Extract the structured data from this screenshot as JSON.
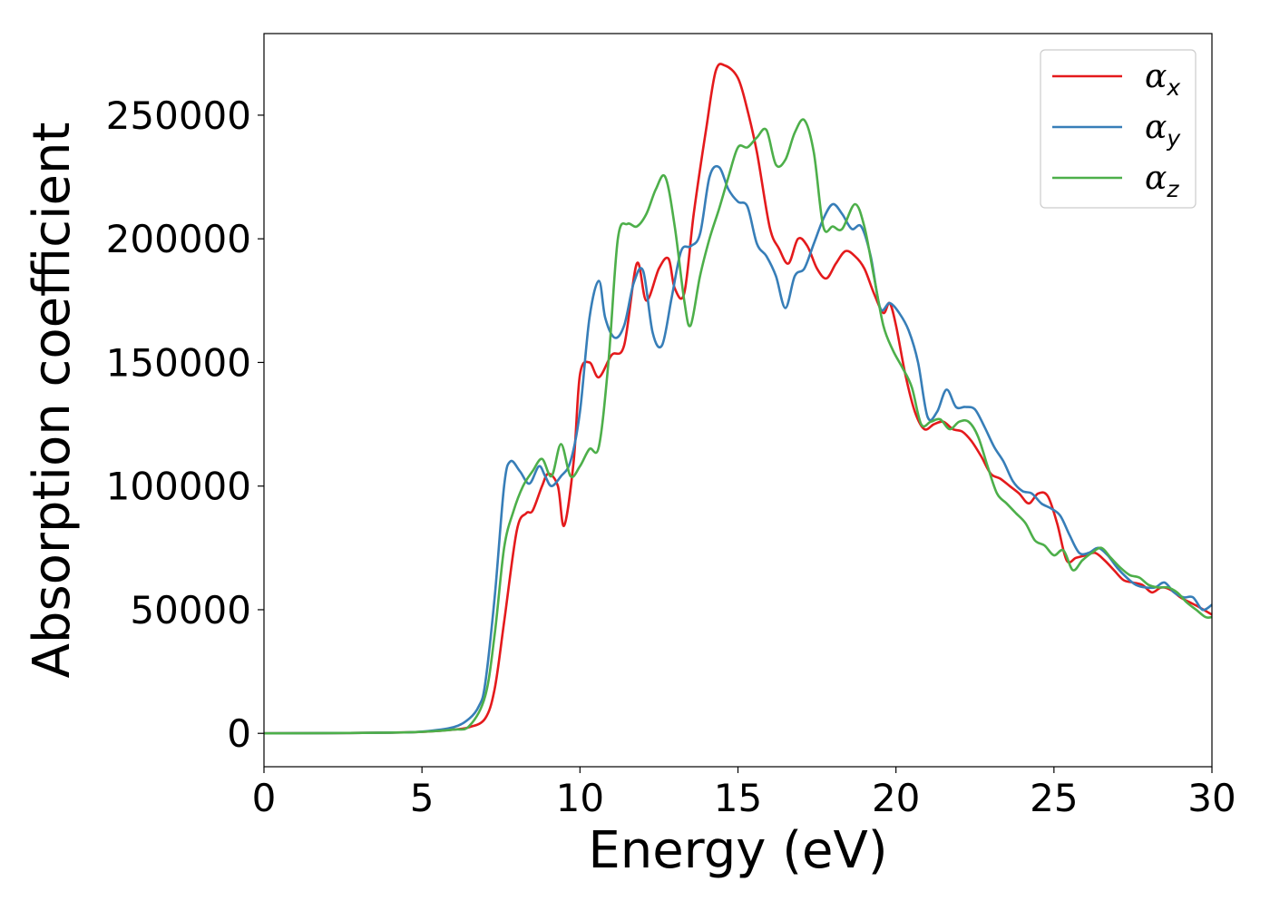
{
  "chart_data": {
    "type": "line",
    "xlabel": "Energy (eV)",
    "ylabel": "Absorption coefficient",
    "xlim": [
      0,
      30
    ],
    "ylim": [
      -13500,
      283000
    ],
    "xticks": [
      0,
      5,
      10,
      15,
      20,
      25,
      30
    ],
    "yticks": [
      0,
      50000,
      100000,
      150000,
      200000,
      250000
    ],
    "grid": false,
    "legend_position": "top-right",
    "series": [
      {
        "name": "α",
        "subscript": "x",
        "color": "#e41a1c",
        "x": [
          0,
          2,
          4,
          5,
          6,
          6.5,
          7,
          7.3,
          7.6,
          8.0,
          8.3,
          8.5,
          8.8,
          9.0,
          9.3,
          9.5,
          9.8,
          10.0,
          10.3,
          10.6,
          11.0,
          11.4,
          11.8,
          12.1,
          12.5,
          12.8,
          13.0,
          13.3,
          13.6,
          14.0,
          14.3,
          14.6,
          15.0,
          15.3,
          15.6,
          16.0,
          16.3,
          16.6,
          16.9,
          17.2,
          17.5,
          17.8,
          18.1,
          18.4,
          18.7,
          19.0,
          19.3,
          19.6,
          19.8,
          20.0,
          20.3,
          20.6,
          20.9,
          21.2,
          21.5,
          21.8,
          22.1,
          22.4,
          22.7,
          23.0,
          23.3,
          23.6,
          23.9,
          24.2,
          24.5,
          24.8,
          25.1,
          25.4,
          25.7,
          26.0,
          26.3,
          26.6,
          26.9,
          27.2,
          27.5,
          27.8,
          28.1,
          28.4,
          28.7,
          29.0,
          29.3,
          29.6,
          30.0
        ],
        "y": [
          0,
          100,
          300,
          600,
          1500,
          2500,
          6000,
          18000,
          45000,
          82000,
          89000,
          90000,
          100000,
          105000,
          100000,
          84000,
          110000,
          145000,
          150000,
          144000,
          153000,
          157000,
          190000,
          175000,
          188000,
          192000,
          180000,
          178000,
          210000,
          245000,
          268000,
          270000,
          265000,
          252000,
          235000,
          205000,
          196000,
          190000,
          200000,
          197000,
          188000,
          184000,
          190000,
          195000,
          193000,
          188000,
          178000,
          170000,
          174000,
          165000,
          145000,
          130000,
          123000,
          125000,
          126000,
          123000,
          122000,
          118000,
          112000,
          105000,
          103000,
          100000,
          97000,
          93000,
          97000,
          96000,
          85000,
          70000,
          71000,
          72000,
          73000,
          70000,
          66000,
          62000,
          61000,
          60000,
          57000,
          59000,
          58000,
          55000,
          53000,
          51000,
          48000
        ]
      },
      {
        "name": "α",
        "subscript": "y",
        "color": "#377eb8",
        "x": [
          0,
          2,
          4,
          5,
          6,
          6.5,
          6.8,
          7.0,
          7.3,
          7.6,
          7.8,
          8.1,
          8.4,
          8.7,
          8.9,
          9.1,
          9.4,
          9.7,
          10.0,
          10.3,
          10.6,
          10.8,
          11.1,
          11.4,
          11.7,
          12.0,
          12.3,
          12.6,
          12.9,
          13.2,
          13.5,
          13.8,
          14.1,
          14.4,
          14.7,
          15.0,
          15.3,
          15.6,
          15.9,
          16.2,
          16.5,
          16.8,
          17.1,
          17.4,
          17.7,
          18.0,
          18.3,
          18.6,
          18.9,
          19.2,
          19.5,
          19.8,
          20.1,
          20.4,
          20.7,
          21.0,
          21.3,
          21.6,
          21.9,
          22.2,
          22.5,
          22.8,
          23.1,
          23.4,
          23.7,
          24.0,
          24.3,
          24.6,
          24.9,
          25.2,
          25.5,
          25.8,
          26.1,
          26.4,
          26.7,
          27.0,
          27.3,
          27.6,
          27.9,
          28.2,
          28.5,
          28.8,
          29.1,
          29.4,
          29.7,
          30.0
        ],
        "y": [
          0,
          100,
          300,
          700,
          2500,
          6000,
          11000,
          20000,
          55000,
          100000,
          110000,
          106000,
          101000,
          108000,
          104000,
          100000,
          104000,
          110000,
          130000,
          168000,
          183000,
          168000,
          160000,
          165000,
          182000,
          187000,
          162000,
          157000,
          176000,
          195000,
          197000,
          202000,
          225000,
          229000,
          220000,
          215000,
          213000,
          198000,
          193000,
          185000,
          172000,
          185000,
          188000,
          198000,
          208000,
          214000,
          210000,
          204000,
          205000,
          193000,
          172000,
          174000,
          170000,
          163000,
          150000,
          128000,
          130000,
          139000,
          132000,
          132000,
          131000,
          124000,
          116000,
          110000,
          102000,
          98000,
          97000,
          93000,
          91000,
          88000,
          80000,
          73000,
          73000,
          75000,
          72000,
          67000,
          63000,
          60000,
          59000,
          59000,
          61000,
          57000,
          55000,
          55000,
          50000,
          52000
        ]
      },
      {
        "name": "α",
        "subscript": "z",
        "color": "#4daf4a",
        "x": [
          0,
          2,
          4,
          5,
          6,
          6.5,
          7.0,
          7.3,
          7.6,
          7.9,
          8.2,
          8.5,
          8.8,
          9.1,
          9.4,
          9.7,
          10.0,
          10.3,
          10.6,
          10.9,
          11.2,
          11.5,
          11.8,
          12.1,
          12.4,
          12.7,
          13.0,
          13.3,
          13.5,
          13.8,
          14.1,
          14.4,
          14.7,
          15.0,
          15.3,
          15.6,
          15.9,
          16.2,
          16.5,
          16.8,
          17.1,
          17.4,
          17.7,
          18.0,
          18.3,
          18.7,
          19.0,
          19.3,
          19.6,
          19.9,
          20.2,
          20.5,
          20.8,
          21.1,
          21.4,
          21.7,
          22.0,
          22.3,
          22.6,
          22.9,
          23.2,
          23.5,
          23.8,
          24.1,
          24.4,
          24.7,
          25.0,
          25.3,
          25.6,
          25.9,
          26.2,
          26.5,
          26.8,
          27.1,
          27.4,
          27.7,
          28.0,
          28.3,
          28.6,
          28.9,
          29.2,
          29.5,
          29.8,
          30.0
        ],
        "y": [
          0,
          100,
          300,
          600,
          1500,
          3000,
          15000,
          40000,
          75000,
          90000,
          100000,
          106000,
          111000,
          104000,
          117000,
          104000,
          108000,
          115000,
          116000,
          150000,
          200000,
          206000,
          205000,
          210000,
          220000,
          225000,
          205000,
          175000,
          165000,
          185000,
          200000,
          212000,
          225000,
          237000,
          237000,
          241000,
          244000,
          230000,
          232000,
          243000,
          248000,
          235000,
          205000,
          205000,
          204000,
          214000,
          205000,
          185000,
          165000,
          155000,
          148000,
          140000,
          125000,
          126000,
          127000,
          123000,
          126000,
          126000,
          120000,
          108000,
          97000,
          93000,
          89000,
          85000,
          78000,
          76000,
          72000,
          74000,
          66000,
          70000,
          73000,
          75000,
          71000,
          67000,
          64000,
          63000,
          60000,
          59000,
          59000,
          57000,
          53000,
          50000,
          47000,
          47000
        ]
      }
    ]
  }
}
